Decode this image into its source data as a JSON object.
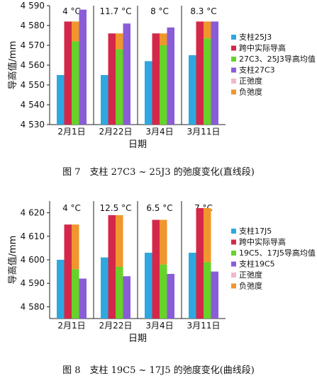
{
  "colors": {
    "support_a": "#2ea8e0",
    "midspan_actual": "#d4284a",
    "avg": "#66d22a",
    "support_b": "#8a5cd8",
    "positive_sag": "#f2b8c8",
    "negative_sag": "#f0962c"
  },
  "chart_data": [
    {
      "type": "bar",
      "caption": "图 7　支柱 27C3 ~ 25J3 的弛度变化(直线段)",
      "xlabel": "日期",
      "ylabel": "导高值/mm",
      "ylim": [
        4530,
        4590
      ],
      "yticks": [
        4530,
        4540,
        4550,
        4560,
        4570,
        4580,
        4590
      ],
      "ytick_labels": [
        "4 530",
        "4 540",
        "4 550",
        "4 560",
        "4 570",
        "4 580",
        "4 590"
      ],
      "categories": [
        "2月1日",
        "2月22日",
        "3月4日",
        "3月11日"
      ],
      "temperatures": [
        "4 °C",
        "11.7 °C",
        "8 °C",
        "8.3 °C"
      ],
      "grid": false,
      "legend_position": "right",
      "series": [
        {
          "name": "支柱25J3",
          "color_key": "support_a",
          "values": [
            4555,
            4555,
            4562,
            4565
          ]
        },
        {
          "name": "跨中实际导高",
          "color_key": "midspan_actual",
          "values": [
            4582,
            4576,
            4576,
            4582
          ]
        },
        {
          "name": "27C3、25J3导高均值",
          "color_key": "avg",
          "values": [
            4572,
            4568,
            4570,
            4573.5
          ]
        },
        {
          "name": "支柱27C3",
          "color_key": "support_b",
          "values": [
            4588,
            4581,
            4579,
            4582
          ]
        }
      ],
      "legend_extra": [
        {
          "name": "正弛度",
          "color_key": "positive_sag"
        },
        {
          "name": "负弛度",
          "color_key": "negative_sag"
        }
      ],
      "sag_type": "negative"
    },
    {
      "type": "bar",
      "caption": "图 8　支柱 19C5 ~ 17J5 的弛度变化(曲线段)",
      "xlabel": "日期",
      "ylabel": "导高值/mm",
      "ylim": [
        4575,
        4625
      ],
      "yticks": [
        4580,
        4590,
        4600,
        4610,
        4620
      ],
      "ytick_labels": [
        "4 580",
        "4 590",
        "4 600",
        "4 610",
        "4 620"
      ],
      "categories": [
        "2月1日",
        "2月22日",
        "3月4日",
        "3月11日"
      ],
      "temperatures": [
        "4 °C",
        "12.5 °C",
        "6.5 °C",
        "7 °C"
      ],
      "grid": false,
      "legend_position": "right",
      "series": [
        {
          "name": "支柱17J5",
          "color_key": "support_a",
          "values": [
            4600,
            4601,
            4603,
            4603
          ]
        },
        {
          "name": "跨中实际导高",
          "color_key": "midspan_actual",
          "values": [
            4615,
            4619,
            4617,
            4622
          ]
        },
        {
          "name": "19C5、17J5导高均值",
          "color_key": "avg",
          "values": [
            4596,
            4597,
            4598,
            4599
          ]
        },
        {
          "name": "支柱19C5",
          "color_key": "support_b",
          "values": [
            4592,
            4593,
            4594,
            4595
          ]
        }
      ],
      "legend_extra": [
        {
          "name": "正弛度",
          "color_key": "positive_sag"
        },
        {
          "name": "负弛度",
          "color_key": "negative_sag"
        }
      ],
      "sag_type": "negative"
    }
  ]
}
